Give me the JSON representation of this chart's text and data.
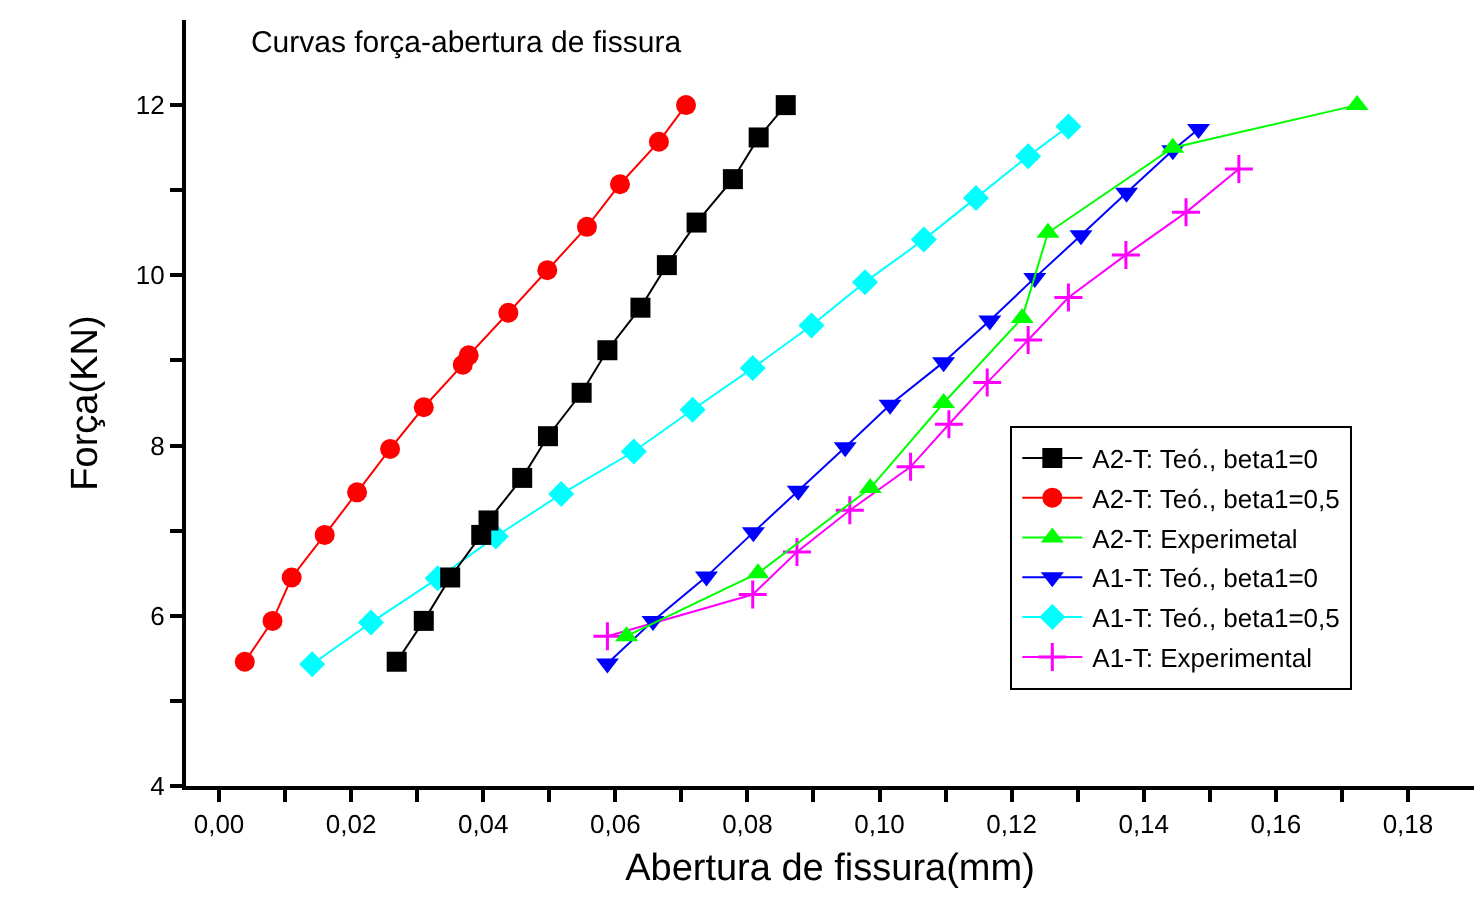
{
  "chart_data": {
    "type": "line",
    "title": "Curvas força-abertura de fissura",
    "xlabel": "Abertura de fissura(mm)",
    "ylabel": "Força(KN)",
    "xlim": [
      -0.005,
      0.19
    ],
    "ylim": [
      4,
      13
    ],
    "xticks": [
      {
        "value": 0,
        "label": "0,00"
      },
      {
        "value": 0.01,
        "label": null
      },
      {
        "value": 0.02,
        "label": "0,02"
      },
      {
        "value": 0.03,
        "label": null
      },
      {
        "value": 0.04,
        "label": "0,04"
      },
      {
        "value": 0.05,
        "label": null
      },
      {
        "value": 0.06,
        "label": "0,06"
      },
      {
        "value": 0.07,
        "label": null
      },
      {
        "value": 0.08,
        "label": "0,08"
      },
      {
        "value": 0.09,
        "label": null
      },
      {
        "value": 0.1,
        "label": "0,10"
      },
      {
        "value": 0.11,
        "label": null
      },
      {
        "value": 0.12,
        "label": "0,12"
      },
      {
        "value": 0.13,
        "label": null
      },
      {
        "value": 0.14,
        "label": "0,14"
      },
      {
        "value": 0.15,
        "label": null
      },
      {
        "value": 0.16,
        "label": "0,16"
      },
      {
        "value": 0.17,
        "label": null
      },
      {
        "value": 0.18,
        "label": "0,18"
      }
    ],
    "yticks": [
      4,
      {
        "value": 5,
        "label": null
      },
      6,
      {
        "value": 7,
        "label": null
      },
      8,
      {
        "value": 9,
        "label": null
      },
      10,
      {
        "value": 11,
        "label": null
      },
      12
    ],
    "grid": false,
    "legend": "right",
    "line_style": "solid",
    "series": [
      {
        "name": "A2-T: Teó., beta1=0",
        "color": "#000000",
        "marker": "square",
        "x": [
          0.0269,
          0.031,
          0.035,
          0.0397,
          0.0408,
          0.0459,
          0.0498,
          0.0549,
          0.0588,
          0.0638,
          0.0678,
          0.0723,
          0.0778,
          0.0817,
          0.0858
        ],
        "values": [
          5.46,
          5.94,
          6.45,
          6.95,
          7.12,
          7.62,
          8.11,
          8.62,
          9.12,
          9.62,
          10.12,
          10.62,
          11.13,
          11.62,
          12.0
        ]
      },
      {
        "name": "A2-T: Teó., beta1=0,5",
        "color": "#ff0000",
        "marker": "circle",
        "x": [
          0.0039,
          0.0081,
          0.011,
          0.016,
          0.0209,
          0.0259,
          0.031,
          0.0369,
          0.0378,
          0.0438,
          0.0497,
          0.0557,
          0.0607,
          0.0666,
          0.0707
        ],
        "values": [
          5.46,
          5.94,
          6.45,
          6.95,
          7.45,
          7.96,
          8.45,
          8.95,
          9.06,
          9.56,
          10.06,
          10.57,
          11.07,
          11.57,
          12.0
        ]
      },
      {
        "name": "A2-T: Experimetal",
        "color": "#00ff00",
        "marker": "triangle",
        "x": [
          0.0617,
          0.0816,
          0.0986,
          0.1097,
          0.1216,
          0.1255,
          0.1444,
          0.1723
        ],
        "values": [
          5.76,
          6.5,
          7.5,
          8.5,
          9.5,
          10.5,
          11.5,
          12.0
        ]
      },
      {
        "name": "A1-T: Teó., beta1=0",
        "color": "#0000ff",
        "marker": "triangle-down",
        "x": [
          0.0588,
          0.0657,
          0.0738,
          0.0809,
          0.0877,
          0.0948,
          0.1016,
          0.1097,
          0.1167,
          0.1235,
          0.1305,
          0.1374,
          0.1444,
          0.1483
        ],
        "values": [
          5.44,
          5.94,
          6.46,
          6.98,
          7.47,
          7.98,
          8.48,
          8.98,
          9.47,
          9.97,
          10.47,
          10.97,
          11.47,
          11.72
        ]
      },
      {
        "name": "A1-T: Teó., beta1=0,5",
        "color": "#00ffff",
        "marker": "diamond",
        "x": [
          0.0141,
          0.023,
          0.0331,
          0.0419,
          0.0518,
          0.0628,
          0.0717,
          0.0808,
          0.0897,
          0.0978,
          0.1067,
          0.1146,
          0.1225,
          0.1286
        ],
        "values": [
          5.43,
          5.92,
          6.44,
          6.93,
          7.43,
          7.93,
          8.42,
          8.91,
          9.41,
          9.92,
          10.42,
          10.91,
          11.4,
          11.75
        ]
      },
      {
        "name": "A1-T: Experimental",
        "color": "#ff00ff",
        "marker": "cross",
        "x": [
          0.0588,
          0.0808,
          0.0875,
          0.0955,
          0.1047,
          0.1105,
          0.1163,
          0.1225,
          0.1286,
          0.1373,
          0.1464,
          0.1544
        ],
        "values": [
          5.76,
          6.25,
          6.75,
          7.24,
          7.75,
          8.25,
          8.74,
          9.24,
          9.74,
          10.24,
          10.74,
          11.25
        ]
      }
    ]
  }
}
